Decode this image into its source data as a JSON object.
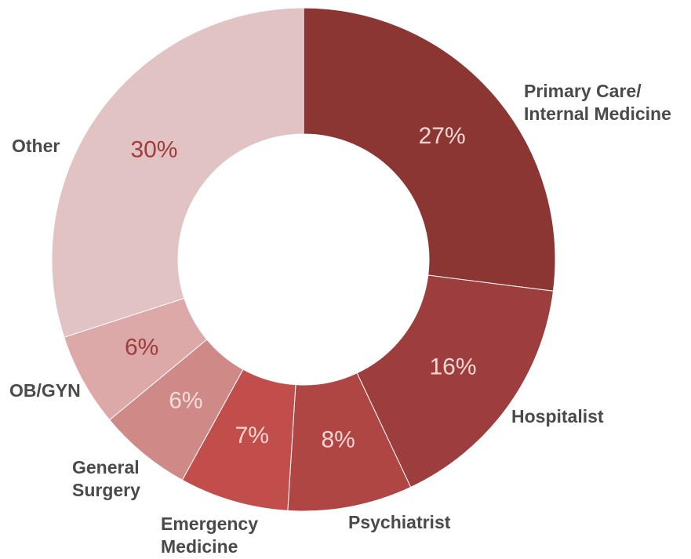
{
  "chart_data": {
    "type": "pie",
    "categories": [
      [
        "Primary Care/",
        "Internal Medicine"
      ],
      [
        "Hospitalist"
      ],
      [
        "Psychiatrist"
      ],
      [
        "Emergency",
        "Medicine"
      ],
      [
        "General",
        "Surgery"
      ],
      [
        "OB/GYN"
      ],
      [
        "Other"
      ]
    ],
    "values": [
      27,
      16,
      8,
      7,
      6,
      6,
      30
    ],
    "value_labels": [
      "27%",
      "16%",
      "8%",
      "7%",
      "6%",
      "6%",
      "30%"
    ],
    "colors": [
      "#8b3633",
      "#9e3d3d",
      "#b04644",
      "#c24e4c",
      "#cf8987",
      "#dca8a8",
      "#e2c3c3"
    ],
    "label_colors": [
      "#f2d6d2",
      "#f2d6d2",
      "#f2d6d2",
      "#f2d6d2",
      "#f2dcdc",
      "#9e3d3d",
      "#9e3d3d"
    ]
  }
}
